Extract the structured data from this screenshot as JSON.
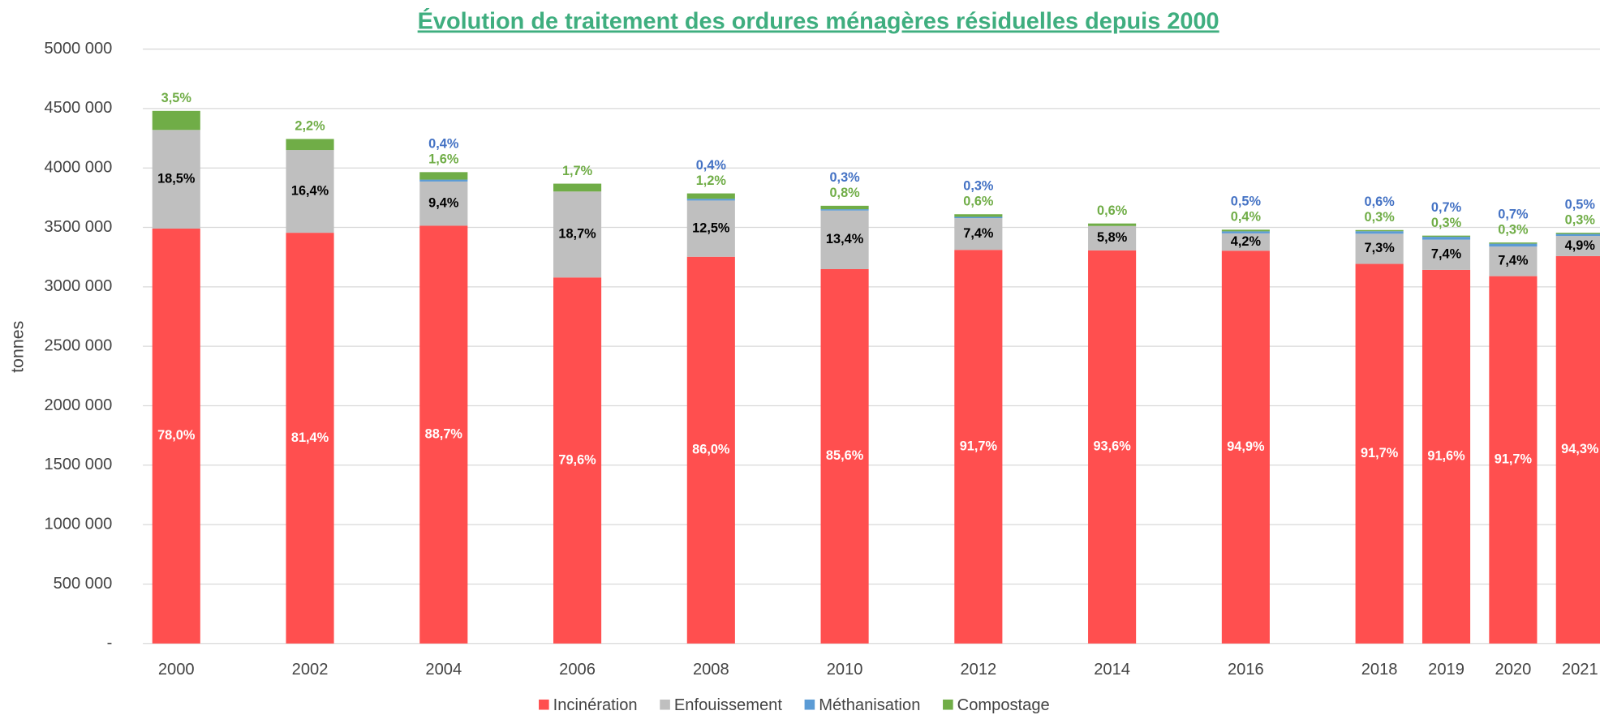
{
  "chart_data": {
    "type": "stacked_bar",
    "title": "Évolution de traitement des ordures ménagères résiduelles depuis 2000",
    "y_label": "tonnes",
    "x": [
      2000,
      2002,
      2004,
      2006,
      2008,
      2010,
      2012,
      2014,
      2016,
      2018,
      2019,
      2020,
      2021
    ],
    "xlim": [
      1999.5,
      2021.3
    ],
    "ylim": [
      0,
      5000000
    ],
    "yticks": [
      {
        "value": 0,
        "label": "-"
      },
      {
        "value": 500000,
        "label": "500 000"
      },
      {
        "value": 1000000,
        "label": "1000 000"
      },
      {
        "value": 1500000,
        "label": "1500 000"
      },
      {
        "value": 2000000,
        "label": "2000 000"
      },
      {
        "value": 2500000,
        "label": "2500 000"
      },
      {
        "value": 3000000,
        "label": "3000 000"
      },
      {
        "value": 3500000,
        "label": "3500 000"
      },
      {
        "value": 4000000,
        "label": "4000 000"
      },
      {
        "value": 4500000,
        "label": "4500 000"
      },
      {
        "value": 5000000,
        "label": "5000 000"
      }
    ],
    "grid": true,
    "legend": "bottom",
    "series": [
      {
        "name": "Incinération",
        "color": "#ff4f4f",
        "label_color": "#ffffff",
        "values": [
          3490000,
          3455000,
          3514000,
          3079000,
          3253000,
          3149000,
          3311000,
          3307000,
          3304000,
          3193000,
          3143000,
          3090000,
          3259000
        ],
        "value_labels": [
          "78,0%",
          "81,4%",
          "88,7%",
          "79,6%",
          "86,0%",
          "85,6%",
          "91,7%",
          "93,6%",
          "94,9%",
          "91,7%",
          "91,6%",
          "91,7%",
          "94,3%"
        ]
      },
      {
        "name": "Enfouissement",
        "color": "#bfbfbf",
        "label_color": "#000000",
        "values": [
          830000,
          696000,
          372000,
          723000,
          473000,
          493000,
          267000,
          205000,
          146000,
          254000,
          254000,
          249000,
          169000
        ],
        "value_labels": [
          "18,5%",
          "16,4%",
          "9,4%",
          "18,7%",
          "12,5%",
          "13,4%",
          "7,4%",
          "5,8%",
          "4,2%",
          "7,3%",
          "7,4%",
          "7,4%",
          "4,9%"
        ]
      },
      {
        "name": "Méthanisation",
        "color": "#5b9bd5",
        "label_color": "#4472c4",
        "values": [
          0,
          0,
          16000,
          0,
          15000,
          11000,
          11000,
          0,
          17000,
          21000,
          24000,
          24000,
          17000
        ],
        "value_labels": [
          null,
          null,
          "0,4%",
          null,
          "0,4%",
          "0,3%",
          "0,3%",
          null,
          "0,5%",
          "0,6%",
          "0,7%",
          "0,7%",
          "0,5%"
        ]
      },
      {
        "name": "Compostage",
        "color": "#70ad47",
        "label_color": "#70ad47",
        "values": [
          160000,
          93000,
          63000,
          66000,
          45000,
          29000,
          22000,
          21000,
          14000,
          10000,
          10000,
          10000,
          10000
        ],
        "value_labels": [
          "3,5%",
          "2,2%",
          "1,6%",
          "1,7%",
          "1,2%",
          "0,8%",
          "0,6%",
          "0,6%",
          "0,4%",
          "0,3%",
          "0,3%",
          "0,3%",
          "0,3%"
        ]
      }
    ]
  }
}
